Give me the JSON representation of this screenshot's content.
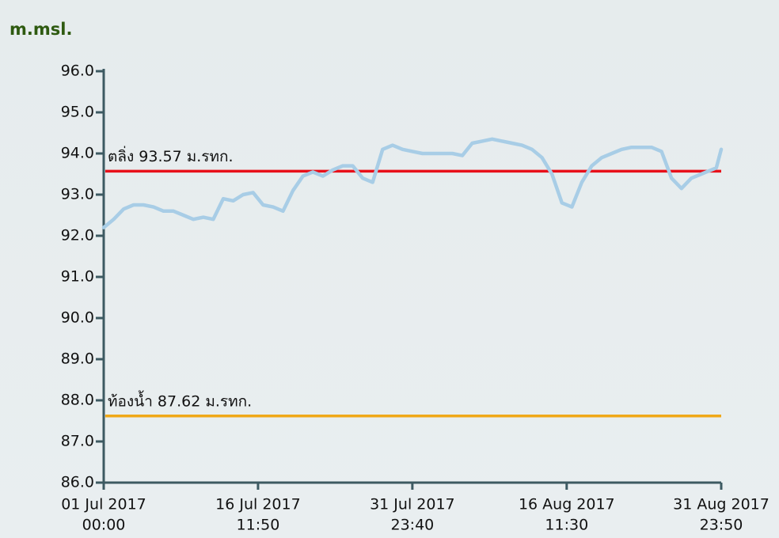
{
  "chart_data": {
    "type": "line",
    "y_label": "m.msl.",
    "x": [
      "2017-07-01T00:00",
      "2017-07-02T00:00",
      "2017-07-03T00:00",
      "2017-07-04T00:00",
      "2017-07-05T00:00",
      "2017-07-06T00:00",
      "2017-07-07T00:00",
      "2017-07-08T00:00",
      "2017-07-09T00:00",
      "2017-07-10T00:00",
      "2017-07-11T00:00",
      "2017-07-12T00:00",
      "2017-07-13T00:00",
      "2017-07-14T00:00",
      "2017-07-15T00:00",
      "2017-07-16T00:00",
      "2017-07-17T00:00",
      "2017-07-18T00:00",
      "2017-07-19T00:00",
      "2017-07-20T00:00",
      "2017-07-21T00:00",
      "2017-07-22T00:00",
      "2017-07-23T00:00",
      "2017-07-24T00:00",
      "2017-07-25T00:00",
      "2017-07-26T00:00",
      "2017-07-27T00:00",
      "2017-07-28T00:00",
      "2017-07-29T00:00",
      "2017-07-30T00:00",
      "2017-07-31T00:00",
      "2017-08-01T00:00",
      "2017-08-02T00:00",
      "2017-08-03T00:00",
      "2017-08-04T00:00",
      "2017-08-05T00:00",
      "2017-08-06T00:00",
      "2017-08-07T00:00",
      "2017-08-08T00:00",
      "2017-08-09T00:00",
      "2017-08-10T00:00",
      "2017-08-11T00:00",
      "2017-08-12T00:00",
      "2017-08-13T00:00",
      "2017-08-14T00:00",
      "2017-08-15T00:00",
      "2017-08-16T00:00",
      "2017-08-17T00:00",
      "2017-08-18T00:00",
      "2017-08-19T00:00",
      "2017-08-20T00:00",
      "2017-08-21T00:00",
      "2017-08-22T00:00",
      "2017-08-23T00:00",
      "2017-08-24T00:00",
      "2017-08-25T00:00",
      "2017-08-26T00:00",
      "2017-08-27T00:00",
      "2017-08-28T00:00",
      "2017-08-29T00:00",
      "2017-08-30T00:00",
      "2017-08-31T00:00",
      "2017-08-31T12:00",
      "2017-08-31T23:50"
    ],
    "values": [
      92.2,
      92.4,
      92.65,
      92.75,
      92.75,
      92.7,
      92.6,
      92.6,
      92.5,
      92.4,
      92.45,
      92.4,
      92.9,
      92.85,
      93.0,
      93.05,
      92.75,
      92.7,
      92.6,
      93.1,
      93.45,
      93.55,
      93.45,
      93.6,
      93.7,
      93.7,
      93.4,
      93.3,
      94.1,
      94.2,
      94.1,
      94.05,
      94.0,
      94.0,
      94.0,
      94.0,
      93.95,
      94.25,
      94.3,
      94.35,
      94.3,
      94.25,
      94.2,
      94.1,
      93.9,
      93.5,
      92.8,
      92.7,
      93.3,
      93.7,
      93.9,
      94.0,
      94.1,
      94.15,
      94.15,
      94.15,
      94.05,
      93.4,
      93.15,
      93.4,
      93.5,
      93.6,
      93.65,
      94.1
    ],
    "color": "#a8cde6",
    "xlim": [
      "2017-07-01T00:00",
      "2017-08-31T23:50"
    ],
    "xticks": [
      {
        "value": "2017-07-01T00:00",
        "label": [
          "01 Jul 2017",
          "00:00"
        ]
      },
      {
        "value": "2017-07-16T11:50",
        "label": [
          "16 Jul 2017",
          "11:50"
        ]
      },
      {
        "value": "2017-07-31T23:40",
        "label": [
          "31 Jul 2017",
          "23:40"
        ]
      },
      {
        "value": "2017-08-16T11:30",
        "label": [
          "16 Aug 2017",
          "11:30"
        ]
      },
      {
        "value": "2017-08-31T23:50",
        "label": [
          "31 Aug 2017",
          "23:50"
        ]
      }
    ],
    "ylim": [
      86,
      96
    ],
    "yticks": [
      {
        "value": 86,
        "label": "86.0"
      },
      {
        "value": 87,
        "label": "87.0"
      },
      {
        "value": 88,
        "label": "88.0"
      },
      {
        "value": 89,
        "label": "89.0"
      },
      {
        "value": 90,
        "label": "90.0"
      },
      {
        "value": 91,
        "label": "91.0"
      },
      {
        "value": 92,
        "label": "92.0"
      },
      {
        "value": 93,
        "label": "93.0"
      },
      {
        "value": 94,
        "label": "94.0"
      },
      {
        "value": 95,
        "label": "95.0"
      },
      {
        "value": 96,
        "label": "96.0"
      }
    ],
    "reference_lines": [
      {
        "label": "ตลิ่ง 93.57 ม.รทก.",
        "value": 93.57,
        "color": "#e8101a"
      },
      {
        "label": "ท้องน้ำ 87.62 ม.รทก.",
        "value": 87.62,
        "color": "#f0a818"
      }
    ]
  }
}
